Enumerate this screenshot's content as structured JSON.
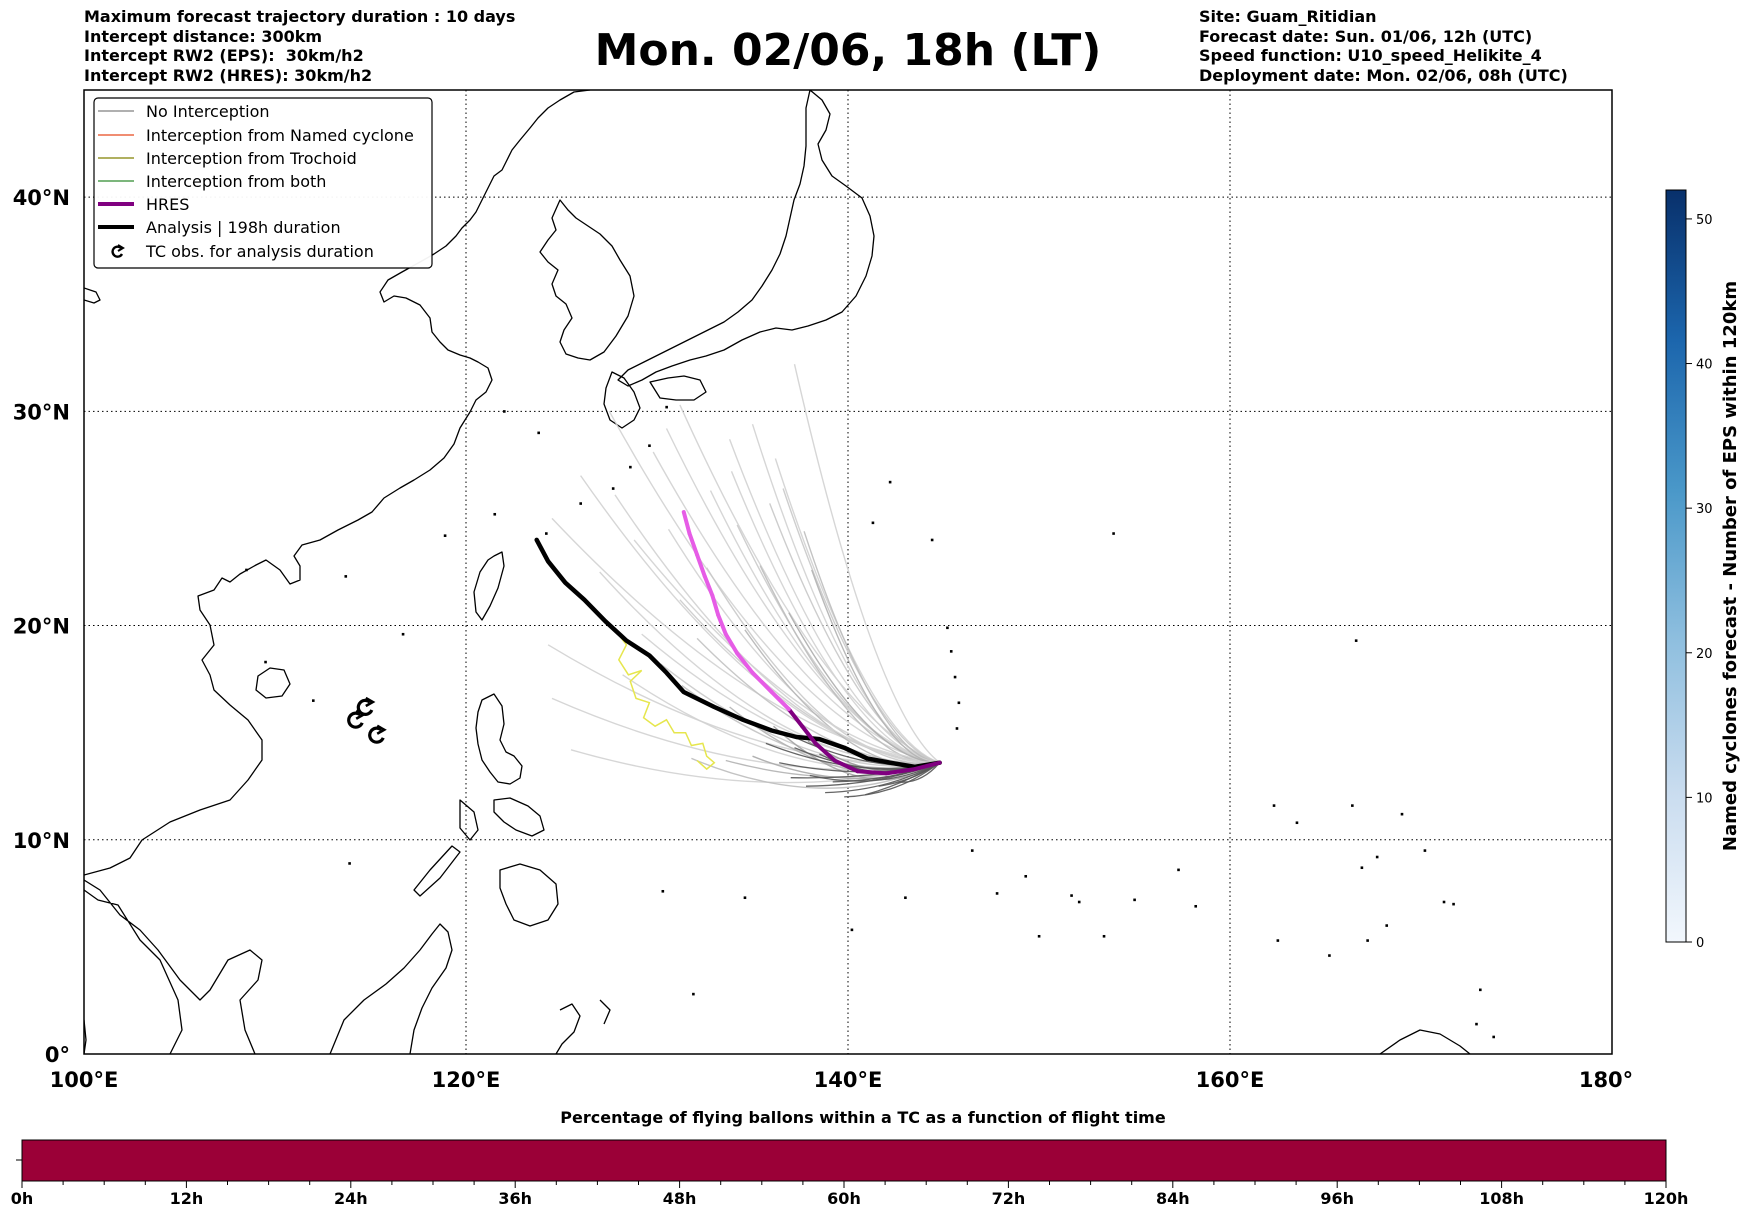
{
  "header": {
    "left_lines": [
      "Maximum forecast trajectory duration : 10 days",
      "Intercept distance: 300km",
      "Intercept RW2 (EPS):  30km/h2",
      "Intercept RW2 (HRES): 30km/h2"
    ],
    "right_lines": [
      "Site: Guam_Ritidian",
      "Forecast date: Sun. 01/06, 12h (UTC)",
      "Speed function: U10_speed_Helikite_4",
      "Deployment date: Mon. 02/06, 08h (UTC)"
    ],
    "title": "Mon. 02/06, 18h (LT)"
  },
  "map": {
    "lon_range": [
      100,
      180
    ],
    "lat_range": [
      0,
      45
    ],
    "lon_ticks": [
      {
        "value": 100,
        "label": "100°E"
      },
      {
        "value": 120,
        "label": "120°E"
      },
      {
        "value": 140,
        "label": "140°E"
      },
      {
        "value": 160,
        "label": "160°E"
      },
      {
        "value": 180,
        "label": "180°"
      }
    ],
    "lat_ticks": [
      {
        "value": 0,
        "label": "0°"
      },
      {
        "value": 10,
        "label": "10°N"
      },
      {
        "value": 20,
        "label": "20°N"
      },
      {
        "value": 30,
        "label": "30°N"
      },
      {
        "value": 40,
        "label": "40°N"
      }
    ],
    "grid": true,
    "launch_site": [
      144.8,
      13.6
    ]
  },
  "legend": {
    "placement": "upper-left",
    "items": [
      {
        "label": "No Interception",
        "color": "#808080",
        "style": "thin-line"
      },
      {
        "label": "Interception from Named cyclone",
        "color": "#e8491d",
        "style": "thin-line"
      },
      {
        "label": "Interception from Trochoid",
        "color": "#808000",
        "style": "thin-line"
      },
      {
        "label": "Interception from both",
        "color": "#2e8b2e",
        "style": "thin-line"
      },
      {
        "label": "HRES",
        "color": "#800080",
        "style": "thick-line"
      },
      {
        "label": "Analysis | 198h duration",
        "color": "#000000",
        "style": "thick-line"
      },
      {
        "label": "TC obs. for analysis duration",
        "color": "#000000",
        "style": "swirl-icon"
      }
    ]
  },
  "colorbar": {
    "title": "Named cyclones forecast - Number of EPS within 120km",
    "range": [
      0,
      52
    ],
    "ticks": [
      0,
      10,
      20,
      30,
      40,
      50
    ],
    "colors": [
      "#f2f7fd",
      "#c9dcef",
      "#8fbfdf",
      "#4a98c9",
      "#1c66ad",
      "#08306b"
    ]
  },
  "timeline": {
    "title": "Percentage of flying ballons within a TC as a function of flight time",
    "fill_color": "#9b0037",
    "range_h": [
      0,
      120
    ],
    "labels": [
      "0h",
      "12h",
      "24h",
      "36h",
      "48h",
      "60h",
      "72h",
      "84h",
      "96h",
      "108h",
      "120h"
    ]
  },
  "tracks": {
    "analysis": {
      "color": "#000000",
      "points": [
        [
          144.8,
          13.6
        ],
        [
          143.5,
          13.4
        ],
        [
          142.2,
          13.6
        ],
        [
          141.0,
          13.8
        ],
        [
          139.8,
          14.3
        ],
        [
          138.5,
          14.7
        ],
        [
          137.3,
          14.8
        ],
        [
          136.0,
          15.1
        ],
        [
          134.5,
          15.6
        ],
        [
          133.0,
          16.2
        ],
        [
          131.4,
          16.9
        ],
        [
          130.5,
          17.8
        ],
        [
          129.6,
          18.6
        ],
        [
          128.4,
          19.3
        ],
        [
          127.3,
          20.2
        ],
        [
          126.2,
          21.2
        ],
        [
          125.2,
          22.0
        ],
        [
          124.3,
          23.0
        ],
        [
          123.7,
          24.0
        ]
      ]
    },
    "hres": {
      "color": "#800080",
      "color_end": "#e65ce6",
      "points": [
        [
          144.8,
          13.6
        ],
        [
          143.5,
          13.3
        ],
        [
          142.0,
          13.1
        ],
        [
          140.5,
          13.2
        ],
        [
          139.3,
          13.7
        ],
        [
          138.3,
          14.5
        ],
        [
          137.6,
          15.3
        ],
        [
          136.9,
          16.1
        ],
        [
          136.0,
          16.9
        ],
        [
          135.0,
          17.8
        ],
        [
          134.2,
          18.7
        ],
        [
          133.6,
          19.6
        ],
        [
          133.2,
          20.5
        ],
        [
          132.9,
          21.4
        ],
        [
          132.5,
          22.3
        ],
        [
          132.1,
          23.3
        ],
        [
          131.7,
          24.3
        ],
        [
          131.4,
          25.3
        ]
      ]
    },
    "trochoid": {
      "color": "#e6e64d",
      "points": [
        [
          127.2,
          20.3
        ],
        [
          127.8,
          19.8
        ],
        [
          128.4,
          19.1
        ],
        [
          128.0,
          18.4
        ],
        [
          128.5,
          17.7
        ],
        [
          129.2,
          17.9
        ],
        [
          128.6,
          17.4
        ],
        [
          128.9,
          16.6
        ],
        [
          129.6,
          16.4
        ],
        [
          129.3,
          15.7
        ],
        [
          129.9,
          15.3
        ],
        [
          130.5,
          15.6
        ],
        [
          130.9,
          15.0
        ],
        [
          131.5,
          15.0
        ],
        [
          131.8,
          14.4
        ],
        [
          132.4,
          14.5
        ],
        [
          132.6,
          13.9
        ],
        [
          133.0,
          13.6
        ],
        [
          132.6,
          13.3
        ],
        [
          132.1,
          13.7
        ]
      ]
    },
    "tc_obs": [
      [
        114.2,
        15.6
      ],
      [
        114.7,
        16.2
      ],
      [
        115.3,
        14.9
      ]
    ],
    "ensemble_endpoints": [
      [
        137.2,
        32.2
      ],
      [
        136.2,
        27.8
      ],
      [
        132.8,
        26.3
      ],
      [
        133.8,
        28.7
      ],
      [
        135.0,
        29.4
      ],
      [
        131.2,
        30.3
      ],
      [
        129.8,
        28.1
      ],
      [
        130.5,
        29.2
      ],
      [
        127.5,
        30.0
      ],
      [
        126.0,
        27.0
      ],
      [
        124.5,
        25.0
      ],
      [
        124.3,
        19.1
      ],
      [
        124.5,
        16.6
      ],
      [
        125.5,
        14.2
      ],
      [
        131.8,
        13.8
      ],
      [
        133.6,
        13.7
      ],
      [
        136.6,
        26.4
      ],
      [
        134.2,
        24.7
      ],
      [
        135.4,
        22.8
      ],
      [
        132.6,
        22.7
      ],
      [
        131.2,
        21.2
      ],
      [
        129.2,
        19.6
      ],
      [
        130.2,
        18.2
      ],
      [
        128.2,
        17.7
      ],
      [
        127.0,
        22.5
      ],
      [
        128.8,
        24.0
      ],
      [
        135.9,
        25.7
      ],
      [
        137.7,
        24.4
      ],
      [
        133.9,
        27.2
      ],
      [
        130.6,
        24.5
      ],
      [
        136.9,
        20.6
      ],
      [
        132.1,
        19.4
      ],
      [
        131.3,
        17.2
      ],
      [
        133.8,
        16.2
      ],
      [
        136.1,
        15.3
      ],
      [
        137.9,
        14.6
      ],
      [
        135.0,
        13.9
      ],
      [
        138.1,
        22.6
      ],
      [
        134.6,
        19.8
      ],
      [
        127.8,
        26.1
      ]
    ],
    "ensemble_south_endpoints": [
      [
        137.0,
        12.9
      ],
      [
        137.8,
        12.5
      ],
      [
        138.8,
        12.2
      ],
      [
        139.8,
        12.0
      ],
      [
        140.9,
        12.1
      ],
      [
        136.4,
        13.6
      ],
      [
        137.2,
        14.3
      ],
      [
        138.0,
        13.0
      ],
      [
        139.2,
        12.7
      ],
      [
        136.7,
        15.0
      ],
      [
        135.7,
        14.5
      ],
      [
        138.5,
        14.0
      ],
      [
        141.6,
        12.5
      ],
      [
        142.6,
        12.7
      ]
    ]
  }
}
